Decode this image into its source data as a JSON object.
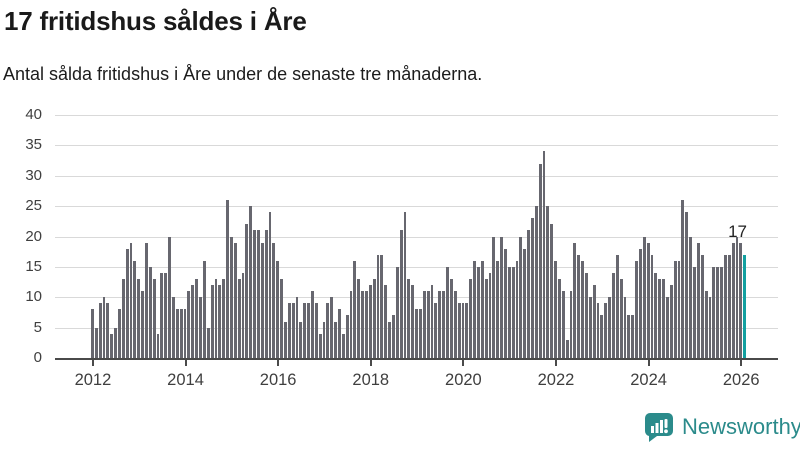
{
  "header": {
    "title": "17 fritidshus såldes i Åre",
    "subtitle": "Antal sålda fritidshus i Åre under de senaste tre månaderna."
  },
  "branding": {
    "wordmark": "Newsworthy"
  },
  "colors": {
    "bar": "#67676f",
    "highlight": "#12a0a0",
    "brand_teal": "#2b8b8b",
    "axis": "#4a4a4a",
    "gridline": "#d9d9d9",
    "text": "#1a1a1a"
  },
  "chart_data": {
    "type": "bar",
    "title": "17 fritidshus såldes i Åre",
    "subtitle": "Antal sålda fritidshus i Åre under de senaste tre månaderna.",
    "frequency": "monthly",
    "x_start": "2012-01",
    "x_end": "2026-02",
    "ylim": [
      0,
      40
    ],
    "yticks": [
      0,
      5,
      10,
      15,
      20,
      25,
      30,
      35,
      40
    ],
    "xtick_years": [
      2012,
      2014,
      2016,
      2018,
      2020,
      2022,
      2024,
      2026
    ],
    "grid": true,
    "legend": false,
    "values": [
      8,
      5,
      9,
      10,
      9,
      4,
      5,
      8,
      13,
      18,
      19,
      16,
      13,
      11,
      19,
      15,
      13,
      4,
      14,
      14,
      20,
      10,
      8,
      8,
      8,
      11,
      12,
      13,
      10,
      16,
      5,
      12,
      13,
      12,
      13,
      26,
      20,
      19,
      13,
      14,
      22,
      25,
      21,
      21,
      19,
      21,
      24,
      19,
      16,
      13,
      6,
      9,
      9,
      10,
      6,
      9,
      9,
      11,
      9,
      4,
      6,
      9,
      10,
      6,
      8,
      4,
      7,
      11,
      16,
      13,
      11,
      11,
      12,
      13,
      17,
      17,
      12,
      6,
      7,
      15,
      21,
      24,
      13,
      12,
      8,
      8,
      11,
      11,
      12,
      9,
      11,
      11,
      15,
      13,
      11,
      9,
      9,
      9,
      13,
      16,
      15,
      16,
      13,
      14,
      20,
      16,
      20,
      18,
      15,
      15,
      16,
      20,
      18,
      21,
      23,
      25,
      32,
      34,
      25,
      22,
      16,
      13,
      11,
      3,
      11,
      19,
      17,
      16,
      14,
      10,
      12,
      9,
      7,
      9,
      10,
      14,
      17,
      13,
      10,
      7,
      7,
      16,
      18,
      20,
      19,
      17,
      14,
      13,
      13,
      10,
      12,
      16,
      16,
      26,
      24,
      20,
      15,
      19,
      17,
      11,
      10,
      15,
      15,
      15,
      17,
      17,
      19,
      20,
      19,
      17
    ],
    "highlight": {
      "index": 169,
      "value": 17,
      "label": "17"
    }
  }
}
